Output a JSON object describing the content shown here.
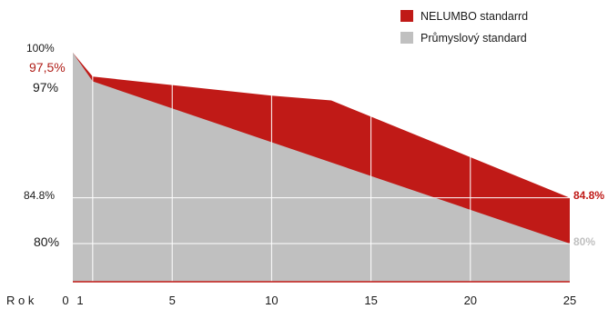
{
  "colors": {
    "nelumbo": "#c01a17",
    "industry": "#c0c0c0",
    "accent_text": "#b01e18",
    "grid": "#ffffff",
    "baseline": "#c01a17"
  },
  "chart_data": {
    "type": "area",
    "xlabel": "R o k",
    "x_ticks": [
      {
        "value": 0,
        "label": "0"
      },
      {
        "value": 1,
        "label": "1"
      },
      {
        "value": 5,
        "label": "5"
      },
      {
        "value": 10,
        "label": "10"
      },
      {
        "value": 15,
        "label": "15"
      },
      {
        "value": 20,
        "label": "20"
      },
      {
        "value": 25,
        "label": "25"
      }
    ],
    "xlim": [
      0,
      25
    ],
    "ylim": [
      76,
      100
    ],
    "grid": true,
    "legend_position": "top-right",
    "series": [
      {
        "name": "NELUMBO standarrd",
        "color": "#c01a17",
        "points": [
          [
            0,
            100
          ],
          [
            1,
            97.5
          ],
          [
            10,
            95.5
          ],
          [
            13,
            95
          ],
          [
            25,
            84.8
          ]
        ]
      },
      {
        "name": "Průmyslový standard",
        "color": "#c0c0c0",
        "points": [
          [
            0,
            100
          ],
          [
            1,
            97
          ],
          [
            25,
            80
          ]
        ]
      }
    ],
    "y_labels_left": [
      {
        "value": 100,
        "text": "100%",
        "tone": "dark"
      },
      {
        "value": 97.5,
        "text": "97,5%",
        "tone": "accent"
      },
      {
        "value": 97,
        "text": "97%",
        "tone": "dark"
      },
      {
        "value": 84.8,
        "text": "84.8%",
        "tone": "dark"
      },
      {
        "value": 80,
        "text": "80%",
        "tone": "dark"
      }
    ],
    "end_labels": [
      {
        "value": 84.8,
        "text": "84.8%",
        "tone": "nelumbo"
      },
      {
        "value": 80,
        "text": "80%",
        "tone": "industry"
      }
    ]
  }
}
